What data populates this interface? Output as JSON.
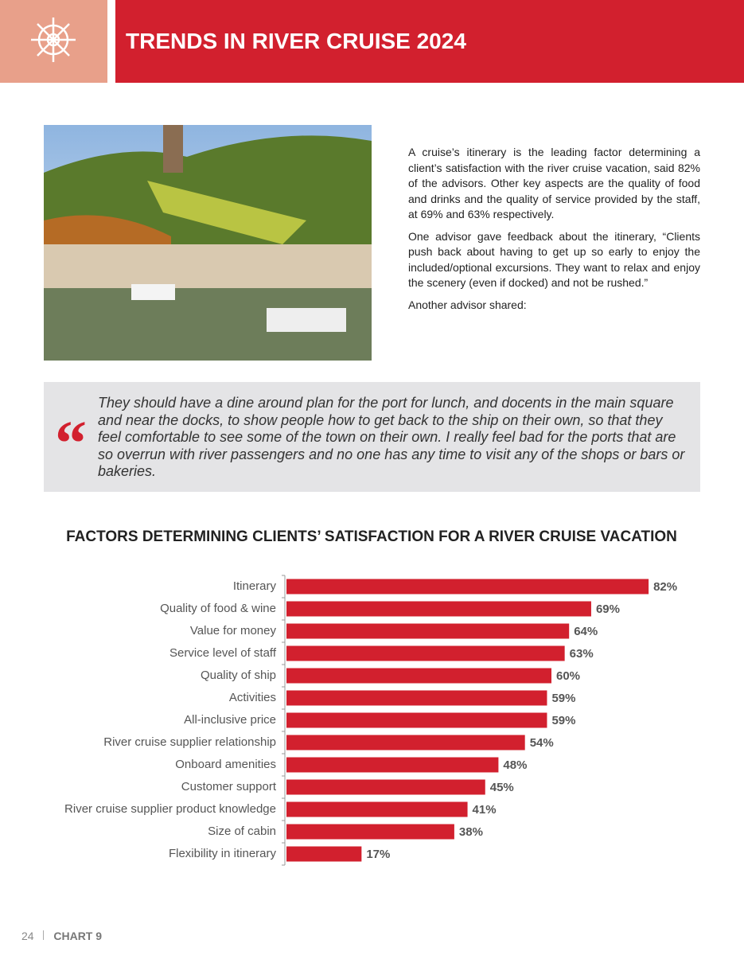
{
  "header": {
    "title": "TRENDS IN RIVER CRUISE 2024"
  },
  "body": {
    "paragraphs": [
      "A cruise’s itinerary is the leading factor determining a client’s satisfaction with the river cruise vacation, said 82% of the advisors. Other key aspects are the quality of food and drinks and the quality of service provided by the staff, at 69% and 63% respectively.",
      "One advisor gave feedback about the itinerary, “Clients push back about having to get up so early to enjoy the included/optional excursions. They want to relax and enjoy the scenery (even if docked) and not be rushed.”",
      "Another advisor shared:"
    ]
  },
  "quote": {
    "mark": "“",
    "text": "They should have a dine around plan for the port for lunch, and docents in the main square and near the docks, to show people how to get back to the ship on their own, so that they feel comfortable to see some of the town on their own. I really feel bad for the ports that are so overrun with river passengers and no one has any time to visit any of the shops or bars or bakeries."
  },
  "chart_data": {
    "type": "bar",
    "orientation": "horizontal",
    "title": "FACTORS DETERMINING CLIENTS’ SATISFACTION FOR A RIVER CRUISE VACATION",
    "categories": [
      "Itinerary",
      "Quality of food & wine",
      "Value for money",
      "Service level of staff",
      "Quality of ship",
      "Activities",
      "All-inclusive price",
      "River cruise supplier relationship",
      "Onboard amenities",
      "Customer support",
      "River cruise supplier product knowledge",
      "Size of cabin",
      "Flexibility in itinerary"
    ],
    "values": [
      82,
      69,
      64,
      63,
      60,
      59,
      59,
      54,
      48,
      45,
      41,
      38,
      17
    ],
    "value_labels": [
      "82%",
      "69%",
      "64%",
      "63%",
      "60%",
      "59%",
      "59%",
      "54%",
      "48%",
      "45%",
      "41%",
      "38%",
      "17%"
    ],
    "color": "#d2202e",
    "xlim": [
      0,
      100
    ]
  },
  "footer": {
    "page": "24",
    "label": "CHART 9"
  }
}
